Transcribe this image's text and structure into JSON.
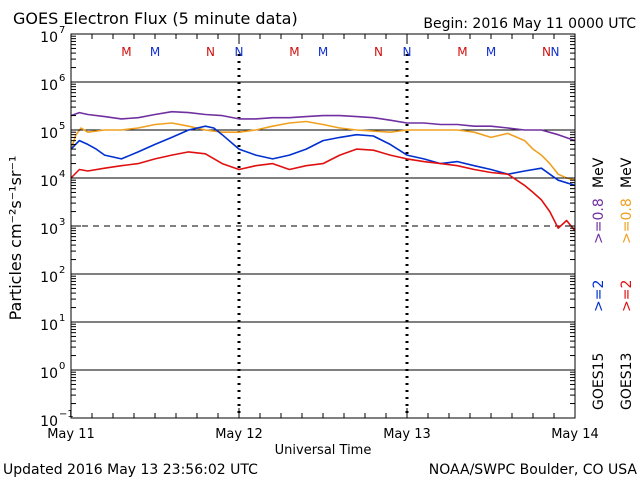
{
  "header": {
    "title": "GOES Electron Flux (5 minute data)",
    "begin": "Begin: 2016 May 11 0000 UTC"
  },
  "footer": {
    "updated": "Updated 2016 May 13 23:56:02 UTC",
    "credit": "NOAA/SWPC Boulder, CO USA"
  },
  "colors": {
    "goes15_gt08": "#7030a0",
    "goes13_gt08": "#f0a020",
    "goes15_gt2": "#0030d0",
    "goes13_gt2": "#e01010",
    "marker_m": "#d01010",
    "marker_n_red": "#d01010",
    "marker_n_blue": "#1030d0"
  },
  "chart_data": {
    "type": "line",
    "title": "GOES Electron Flux (5 minute data)",
    "xlabel": "Universal Time",
    "ylabel": "Particles cm⁻²s⁻¹sr⁻¹",
    "yscale": "log",
    "ylim": [
      0.1,
      10000000
    ],
    "y_ticks": [
      {
        "base": "10",
        "exp": "7"
      },
      {
        "base": "10",
        "exp": "6"
      },
      {
        "base": "10",
        "exp": "5"
      },
      {
        "base": "10",
        "exp": "4"
      },
      {
        "base": "10",
        "exp": "3"
      },
      {
        "base": "10",
        "exp": "2"
      },
      {
        "base": "10",
        "exp": "1"
      },
      {
        "base": "10",
        "exp": "0"
      },
      {
        "base": "10",
        "exp": "−1"
      }
    ],
    "x_ticks": [
      "May 11",
      "May 12",
      "May 13",
      "May 14"
    ],
    "xlim_days": [
      0,
      3
    ],
    "alert_threshold": 1000,
    "markers": [
      {
        "day": 0.33,
        "label": "M",
        "color": "marker_m"
      },
      {
        "day": 0.5,
        "label": "M",
        "color": "marker_n_blue"
      },
      {
        "day": 0.83,
        "label": "N",
        "color": "marker_n_red"
      },
      {
        "day": 1.0,
        "label": "N",
        "color": "marker_n_blue"
      },
      {
        "day": 1.33,
        "label": "M",
        "color": "marker_m"
      },
      {
        "day": 1.5,
        "label": "M",
        "color": "marker_n_blue"
      },
      {
        "day": 1.83,
        "label": "N",
        "color": "marker_n_red"
      },
      {
        "day": 2.0,
        "label": "N",
        "color": "marker_n_blue"
      },
      {
        "day": 2.33,
        "label": "M",
        "color": "marker_m"
      },
      {
        "day": 2.5,
        "label": "M",
        "color": "marker_n_blue"
      },
      {
        "day": 2.83,
        "label": "N",
        "color": "marker_n_red"
      },
      {
        "day": 3.0,
        "label": "N",
        "color": "marker_n_blue"
      }
    ],
    "legend": [
      {
        "sat": "GOES15",
        "items": [
          {
            "text": ">=2",
            "color": "goes15_gt2"
          },
          {
            "text": ">=0.8",
            "color": "goes15_gt08"
          }
        ],
        "unit": "MeV"
      },
      {
        "sat": "GOES13",
        "items": [
          {
            "text": ">=2",
            "color": "goes13_gt2"
          },
          {
            "text": ">=0.8",
            "color": "goes13_gt08"
          }
        ],
        "unit": "MeV"
      }
    ],
    "series": [
      {
        "name": "GOES15 >=0.8 MeV",
        "color": "goes15_gt08",
        "x": [
          0,
          0.05,
          0.1,
          0.2,
          0.3,
          0.4,
          0.5,
          0.6,
          0.7,
          0.8,
          0.9,
          1.0,
          1.1,
          1.2,
          1.3,
          1.4,
          1.5,
          1.6,
          1.7,
          1.8,
          1.9,
          2.0,
          2.1,
          2.2,
          2.3,
          2.4,
          2.5,
          2.6,
          2.7,
          2.8,
          2.9,
          3.0
        ],
        "y": [
          200000,
          230000,
          210000,
          190000,
          170000,
          180000,
          210000,
          240000,
          230000,
          210000,
          200000,
          170000,
          170000,
          180000,
          180000,
          190000,
          200000,
          200000,
          190000,
          180000,
          160000,
          140000,
          140000,
          130000,
          130000,
          120000,
          120000,
          110000,
          100000,
          100000,
          80000,
          60000
        ]
      },
      {
        "name": "GOES13 >=0.8 MeV",
        "color": "goes13_gt08",
        "x": [
          0,
          0.03,
          0.06,
          0.1,
          0.2,
          0.3,
          0.4,
          0.5,
          0.6,
          0.7,
          0.8,
          0.9,
          1.0,
          1.1,
          1.2,
          1.3,
          1.4,
          1.5,
          1.6,
          1.7,
          1.8,
          1.9,
          2.0,
          2.1,
          2.2,
          2.3,
          2.4,
          2.5,
          2.6,
          2.7,
          2.75,
          2.8,
          2.85,
          2.9,
          2.95,
          3.0
        ],
        "y": [
          40000,
          80000,
          110000,
          90000,
          100000,
          100000,
          110000,
          130000,
          140000,
          120000,
          100000,
          90000,
          90000,
          100000,
          120000,
          140000,
          150000,
          130000,
          110000,
          100000,
          95000,
          90000,
          100000,
          100000,
          100000,
          100000,
          90000,
          70000,
          85000,
          60000,
          40000,
          30000,
          20000,
          12000,
          10000,
          9000
        ]
      },
      {
        "name": "GOES15 >=2 MeV",
        "color": "goes15_gt2",
        "x": [
          0,
          0.05,
          0.1,
          0.15,
          0.2,
          0.3,
          0.4,
          0.5,
          0.6,
          0.7,
          0.8,
          0.85,
          0.9,
          1.0,
          1.1,
          1.2,
          1.3,
          1.4,
          1.5,
          1.6,
          1.7,
          1.8,
          1.9,
          2.0,
          2.1,
          2.2,
          2.3,
          2.4,
          2.5,
          2.6,
          2.7,
          2.8,
          2.9,
          3.0
        ],
        "y": [
          40000,
          60000,
          50000,
          40000,
          30000,
          25000,
          35000,
          50000,
          70000,
          100000,
          120000,
          110000,
          80000,
          40000,
          30000,
          25000,
          30000,
          40000,
          60000,
          70000,
          80000,
          75000,
          50000,
          30000,
          25000,
          20000,
          22000,
          18000,
          15000,
          12000,
          14000,
          16000,
          9000,
          7000
        ]
      },
      {
        "name": "GOES13 >=2 MeV",
        "color": "goes13_gt2",
        "x": [
          0,
          0.05,
          0.1,
          0.2,
          0.3,
          0.4,
          0.5,
          0.6,
          0.7,
          0.8,
          0.9,
          1.0,
          1.1,
          1.2,
          1.3,
          1.4,
          1.5,
          1.6,
          1.7,
          1.8,
          1.9,
          2.0,
          2.1,
          2.2,
          2.3,
          2.4,
          2.5,
          2.6,
          2.7,
          2.75,
          2.8,
          2.85,
          2.9,
          2.95,
          3.0
        ],
        "y": [
          10000,
          15000,
          14000,
          16000,
          18000,
          20000,
          25000,
          30000,
          35000,
          32000,
          20000,
          15000,
          18000,
          20000,
          15000,
          18000,
          20000,
          30000,
          40000,
          38000,
          30000,
          25000,
          22000,
          20000,
          18000,
          15000,
          13000,
          12000,
          7000,
          5000,
          3500,
          2000,
          900,
          1300,
          800
        ]
      }
    ]
  }
}
